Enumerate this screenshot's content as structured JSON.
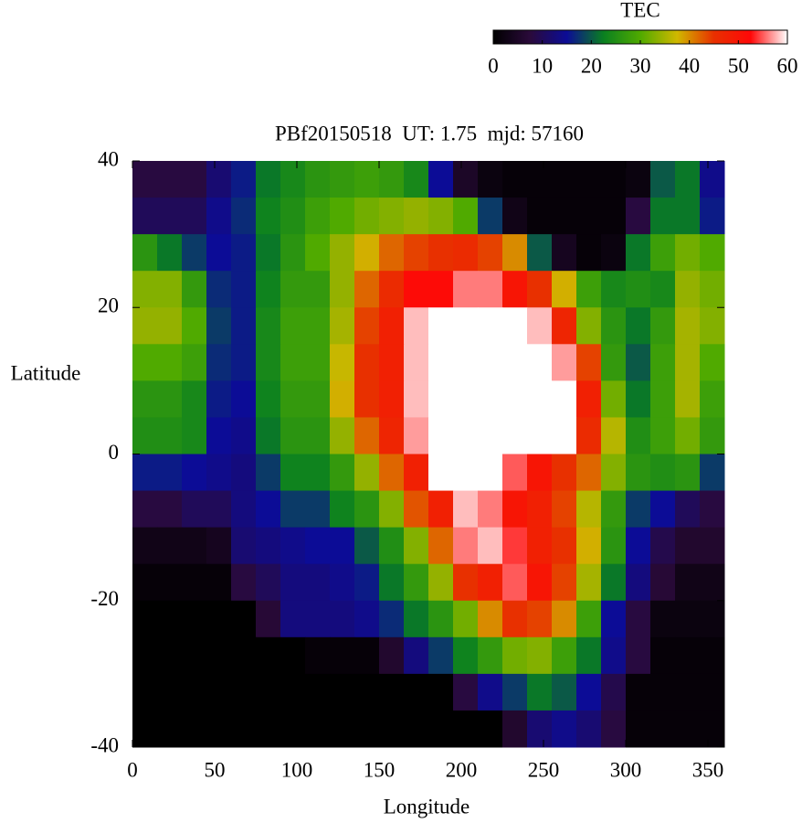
{
  "chart_data": {
    "type": "heatmap",
    "title": "PBf20150518  UT: 1.75  mjd: 57160",
    "xlabel": "Longitude",
    "ylabel": "Latitude",
    "xlim": [
      0,
      360
    ],
    "ylim": [
      -40,
      40
    ],
    "xticks": [
      0,
      50,
      100,
      150,
      200,
      250,
      300,
      350
    ],
    "yticks": [
      -40,
      -20,
      0,
      20,
      40
    ],
    "xbins": [
      0,
      15,
      30,
      45,
      60,
      75,
      90,
      105,
      120,
      135,
      150,
      165,
      180,
      195,
      210,
      225,
      240,
      255,
      270,
      285,
      300,
      315,
      330,
      345,
      360
    ],
    "ybins": [
      40,
      35,
      30,
      25,
      20,
      15,
      10,
      5,
      0,
      -5,
      -10,
      -15,
      -20,
      -25,
      -30,
      -35,
      -40
    ],
    "z": [
      [
        8,
        8,
        8,
        12,
        16,
        22,
        24,
        26,
        27,
        28,
        27,
        24,
        15,
        5,
        2,
        1,
        1,
        1,
        1,
        1,
        2,
        20,
        22,
        14
      ],
      [
        10,
        10,
        10,
        14,
        17,
        23,
        25,
        28,
        30,
        32,
        33,
        34,
        33,
        30,
        18,
        3,
        1,
        1,
        1,
        1,
        8,
        22,
        22,
        16
      ],
      [
        26,
        22,
        18,
        15,
        16,
        22,
        26,
        30,
        34,
        38,
        42,
        44,
        45,
        46,
        44,
        40,
        20,
        4,
        1,
        2,
        22,
        28,
        32,
        30
      ],
      [
        33,
        33,
        27,
        17,
        16,
        23,
        27,
        27,
        34,
        42,
        46,
        52,
        52,
        56,
        56,
        50,
        45,
        38,
        28,
        24,
        25,
        24,
        34,
        32
      ],
      [
        34,
        34,
        30,
        18,
        16,
        24,
        28,
        28,
        35,
        44,
        48,
        58,
        60,
        60,
        60,
        60,
        58,
        47,
        33,
        26,
        22,
        27,
        35,
        33
      ],
      [
        30,
        30,
        28,
        17,
        16,
        24,
        28,
        28,
        37,
        45,
        48,
        58,
        60,
        60,
        60,
        60,
        60,
        57,
        44,
        27,
        20,
        28,
        35,
        30
      ],
      [
        26,
        26,
        24,
        16,
        15,
        23,
        27,
        27,
        38,
        45,
        48,
        58,
        60,
        60,
        60,
        60,
        60,
        60,
        48,
        32,
        22,
        28,
        35,
        28
      ],
      [
        25,
        25,
        24,
        15,
        14,
        22,
        26,
        26,
        34,
        42,
        47,
        57,
        60,
        60,
        60,
        60,
        60,
        60,
        46,
        36,
        25,
        28,
        32,
        27
      ],
      [
        16,
        16,
        15,
        14,
        13,
        18,
        23,
        23,
        27,
        34,
        42,
        48,
        60,
        60,
        60,
        55,
        50,
        45,
        42,
        33,
        26,
        25,
        26,
        18
      ],
      [
        8,
        8,
        10,
        10,
        13,
        15,
        18,
        18,
        23,
        26,
        33,
        43,
        48,
        58,
        56,
        50,
        48,
        44,
        36,
        27,
        18,
        15,
        10,
        8
      ],
      [
        3,
        3,
        3,
        4,
        12,
        13,
        14,
        15,
        15,
        20,
        25,
        33,
        42,
        56,
        58,
        54,
        48,
        45,
        38,
        26,
        15,
        9,
        6,
        6
      ],
      [
        1,
        1,
        1,
        1,
        8,
        10,
        13,
        13,
        14,
        16,
        22,
        27,
        34,
        45,
        48,
        55,
        50,
        44,
        35,
        22,
        13,
        7,
        3,
        3
      ],
      [
        0,
        0,
        0,
        0,
        0,
        7,
        13,
        13,
        13,
        14,
        17,
        22,
        26,
        32,
        40,
        45,
        44,
        40,
        28,
        15,
        8,
        2,
        2,
        2
      ],
      [
        0,
        0,
        0,
        0,
        0,
        0,
        0,
        1,
        1,
        1,
        6,
        13,
        18,
        23,
        27,
        32,
        33,
        28,
        22,
        14,
        8,
        1,
        1,
        1
      ],
      [
        0,
        0,
        0,
        0,
        0,
        0,
        0,
        0,
        0,
        0,
        0,
        0,
        0,
        8,
        14,
        18,
        22,
        20,
        15,
        9,
        1,
        1,
        1,
        1
      ],
      [
        0,
        0,
        0,
        0,
        0,
        0,
        0,
        0,
        0,
        0,
        0,
        0,
        0,
        0,
        0,
        6,
        12,
        14,
        12,
        8,
        1,
        1,
        1,
        1
      ]
    ],
    "colormap": [
      "#000000",
      "#2a0a3a",
      "#0c0c96",
      "#0a8020",
      "#50aa00",
      "#d0b800",
      "#e83000",
      "#ff0808",
      "#ffffff"
    ],
    "colorbar": {
      "title": "TEC",
      "lim": [
        0,
        60
      ],
      "ticks": [
        0,
        10,
        20,
        30,
        40,
        50,
        60
      ]
    }
  }
}
